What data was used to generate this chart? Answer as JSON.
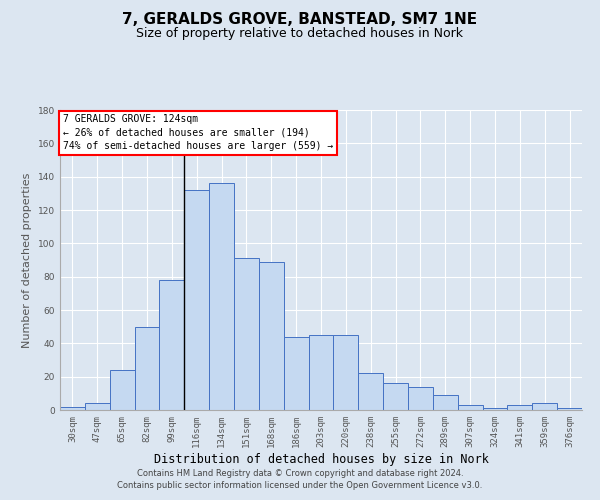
{
  "title": "7, GERALDS GROVE, BANSTEAD, SM7 1NE",
  "subtitle": "Size of property relative to detached houses in Nork",
  "xlabel": "Distribution of detached houses by size in Nork",
  "ylabel": "Number of detached properties",
  "categories": [
    "30sqm",
    "47sqm",
    "65sqm",
    "82sqm",
    "99sqm",
    "116sqm",
    "134sqm",
    "151sqm",
    "168sqm",
    "186sqm",
    "203sqm",
    "220sqm",
    "238sqm",
    "255sqm",
    "272sqm",
    "289sqm",
    "307sqm",
    "324sqm",
    "341sqm",
    "359sqm",
    "376sqm"
  ],
  "values": [
    2,
    4,
    24,
    50,
    78,
    132,
    136,
    91,
    89,
    44,
    45,
    45,
    22,
    16,
    14,
    9,
    3,
    1,
    3,
    4,
    1
  ],
  "bar_color": "#c5d9f1",
  "bar_edge_color": "#4472c4",
  "background_color": "#dce6f1",
  "plot_background": "#dce6f1",
  "annotation_box_text": [
    "7 GERALDS GROVE: 124sqm",
    "← 26% of detached houses are smaller (194)",
    "74% of semi-detached houses are larger (559) →"
  ],
  "annotation_box_color": "white",
  "annotation_box_edge_color": "red",
  "property_line_x": 4.5,
  "ylim": [
    0,
    180
  ],
  "yticks": [
    0,
    20,
    40,
    60,
    80,
    100,
    120,
    140,
    160,
    180
  ],
  "footer_line1": "Contains HM Land Registry data © Crown copyright and database right 2024.",
  "footer_line2": "Contains public sector information licensed under the Open Government Licence v3.0.",
  "title_fontsize": 11,
  "subtitle_fontsize": 9,
  "tick_fontsize": 6.5,
  "ylabel_fontsize": 8,
  "xlabel_fontsize": 8.5,
  "footer_fontsize": 6,
  "annotation_fontsize": 7
}
